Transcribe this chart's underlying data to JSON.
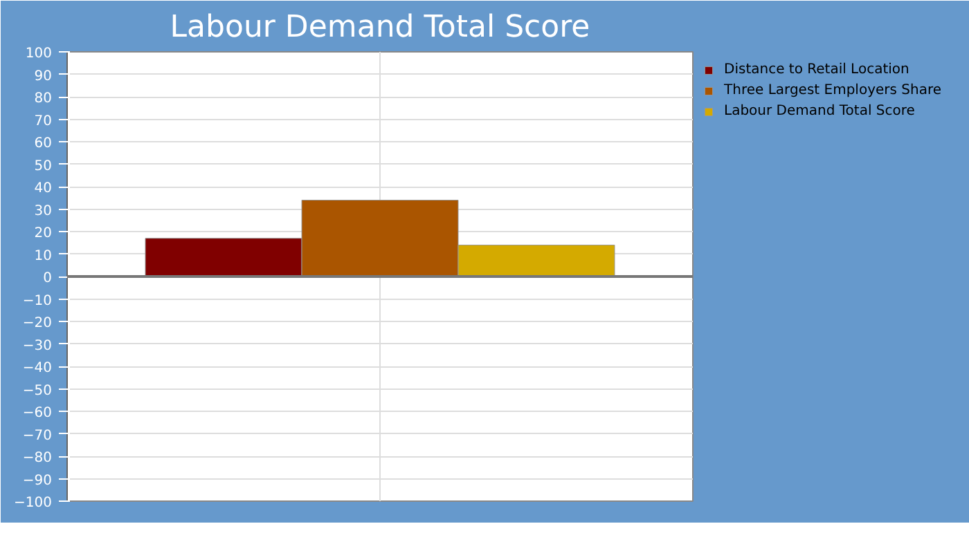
{
  "chart_data": {
    "type": "bar",
    "title": "Labour Demand Total Score",
    "categories": [
      null
    ],
    "series": [
      {
        "name": "Distance to Retail Location",
        "color": "#800000",
        "values": [
          17
        ]
      },
      {
        "name": "Three Largest Employers Share",
        "color": "#aa5500",
        "values": [
          34
        ]
      },
      {
        "name": "Labour Demand Total Score",
        "color": "#d4aa00",
        "values": [
          14
        ]
      }
    ],
    "ylim": [
      -100,
      100
    ],
    "yticks": [
      -100,
      -90,
      -80,
      -70,
      -60,
      -50,
      -40,
      -30,
      -20,
      -10,
      0,
      10,
      20,
      30,
      40,
      50,
      60,
      70,
      80,
      90,
      100
    ],
    "grid": true,
    "legend": "right"
  }
}
